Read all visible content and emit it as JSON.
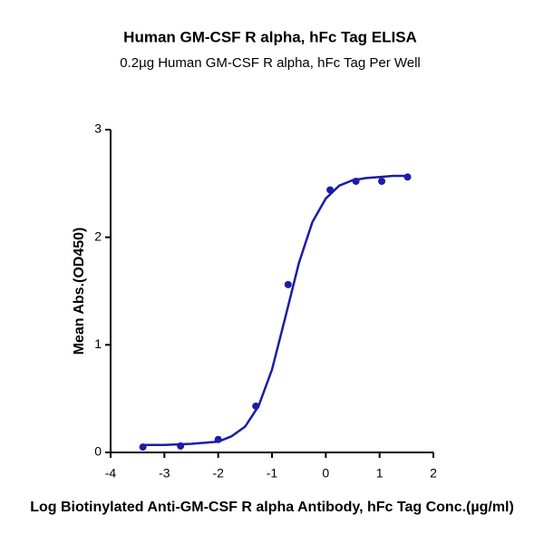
{
  "chart_data": {
    "type": "scatter",
    "title": "Human GM-CSF R alpha, hFc Tag ELISA",
    "subtitle": "0.2µg Human GM-CSF R alpha, hFc Tag Per Well",
    "x_label": "Log Biotinylated Anti-GM-CSF R alpha Antibody, hFc Tag Conc.(µg/ml)",
    "y_label": "Mean Abs.(OD450)",
    "color": "#1c1ca6",
    "x": [
      -3.4,
      -2.7,
      -2.0,
      -1.3,
      -0.7,
      0.08,
      0.56,
      1.04,
      1.52
    ],
    "values": [
      0.05,
      0.06,
      0.12,
      0.43,
      1.56,
      2.44,
      2.52,
      2.52,
      2.56
    ],
    "fit_curve": {
      "x": [
        -3.4,
        -3,
        -2.5,
        -2,
        -1.75,
        -1.5,
        -1.25,
        -1,
        -0.75,
        -0.5,
        -0.25,
        0,
        0.25,
        0.5,
        0.75,
        1,
        1.25,
        1.52
      ],
      "values": [
        0.07,
        0.07,
        0.08,
        0.1,
        0.15,
        0.24,
        0.43,
        0.77,
        1.26,
        1.76,
        2.14,
        2.36,
        2.48,
        2.53,
        2.55,
        2.56,
        2.57,
        2.57
      ]
    },
    "xlim": [
      -4,
      2
    ],
    "ylim": [
      0,
      3
    ],
    "xticks": [
      -4,
      -3,
      -2,
      -1,
      0,
      1,
      2
    ],
    "yticks": [
      0,
      1,
      2,
      3
    ]
  }
}
